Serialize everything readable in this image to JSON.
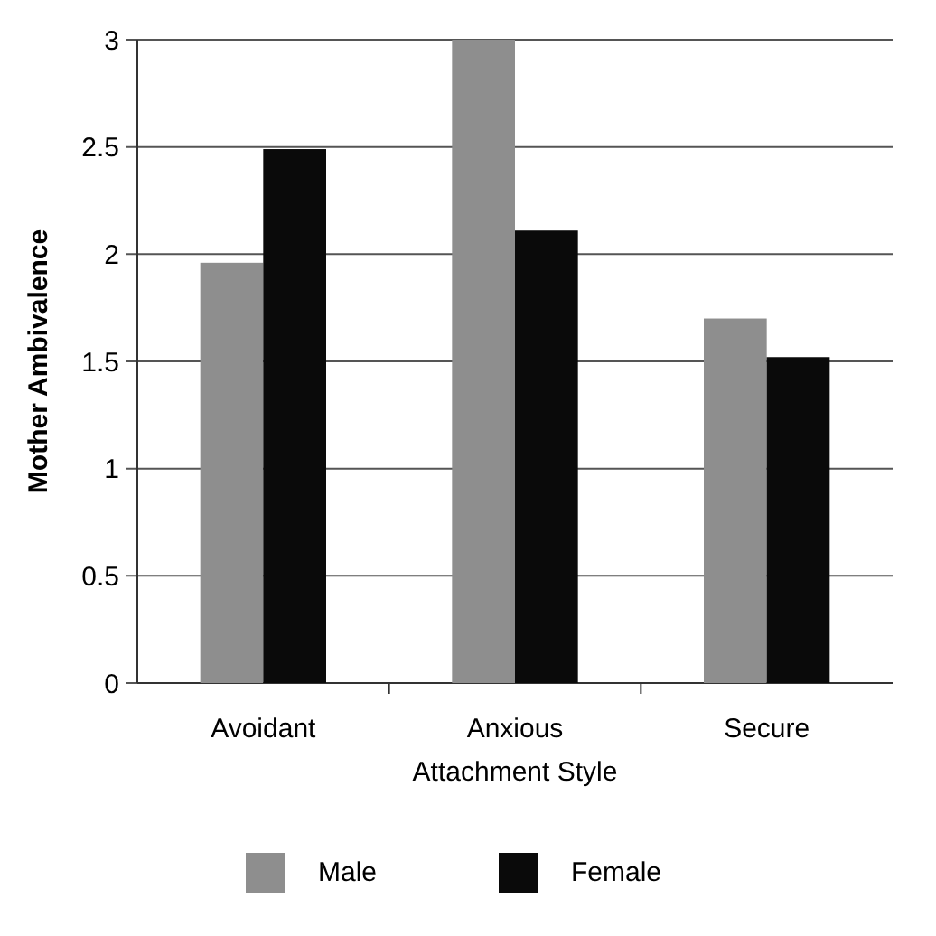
{
  "chart_data": {
    "type": "bar",
    "xlabel": "Attachment Style",
    "ylabel": "Mother Ambivalence",
    "categories": [
      "Avoidant",
      "Anxious",
      "Secure"
    ],
    "series": [
      {
        "name": "Male",
        "color": "#8e8e8e",
        "values": [
          1.96,
          3.0,
          1.7
        ]
      },
      {
        "name": "Female",
        "color": "#0a0a0a",
        "values": [
          2.49,
          2.11,
          1.52
        ]
      }
    ],
    "ylim": [
      0,
      3
    ],
    "yticks": [
      0,
      {
        "value": 0.5,
        "label": "0.5"
      },
      1,
      {
        "value": 1.5,
        "label": "1.5"
      },
      2,
      {
        "value": 2.5,
        "label": "2.5"
      },
      3
    ],
    "grid": "y",
    "legend": "bottom"
  }
}
